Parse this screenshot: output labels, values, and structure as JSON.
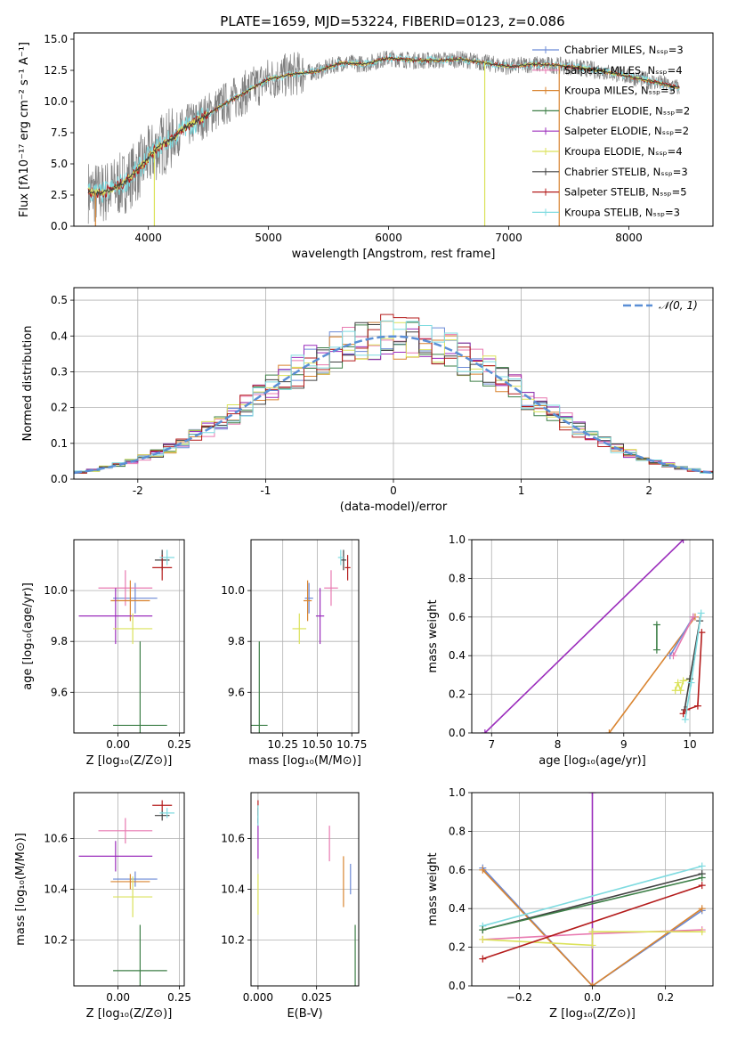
{
  "figure_title": "PLATE=1659, MJD=53224, FIBERID=0123, z=0.086",
  "colors": {
    "Chabrier MILES": "#6b8ad6",
    "Salpeter MILES": "#e879b0",
    "Kroupa MILES": "#d98430",
    "Chabrier ELODIE": "#3d7f47",
    "Salpeter ELODIE": "#9b2dbc",
    "Kroupa ELODIE": "#dbe25a",
    "Chabrier STELIB": "#404040",
    "Salpeter STELIB": "#b41c1c",
    "Kroupa STELIB": "#7fdbe0",
    "gaussian": "#5b8fd6",
    "data": "#7f7f7f"
  },
  "chart_data": [
    {
      "id": "spectrum",
      "type": "line",
      "xlabel": "wavelength [Angstrom, rest frame]",
      "ylabel": "Flux [fλ10⁻¹⁷ erg cm⁻² s⁻¹ A⁻¹]",
      "xlim": [
        3380,
        8700
      ],
      "ylim": [
        0,
        15.5
      ],
      "xticks": [
        4000,
        5000,
        6000,
        7000,
        8000
      ],
      "yticks": [
        0.0,
        2.5,
        5.0,
        7.5,
        10.0,
        12.5,
        15.0
      ],
      "x_range": [
        3500,
        8420
      ],
      "continuum": {
        "x": [
          3500,
          3600,
          3700,
          3800,
          3900,
          4000,
          4100,
          4200,
          4300,
          4400,
          4600,
          4800,
          5000,
          5200,
          5400,
          5600,
          5800,
          6000,
          6200,
          6400,
          6600,
          6800,
          7000,
          7200,
          7400,
          7600,
          7800,
          8000,
          8200,
          8420
        ],
        "y": [
          2.8,
          2.6,
          3.0,
          3.5,
          4.4,
          5.5,
          6.5,
          7.0,
          7.9,
          8.4,
          9.6,
          10.7,
          11.8,
          12.2,
          12.4,
          13.1,
          13.0,
          13.5,
          13.3,
          13.3,
          13.4,
          13.1,
          12.8,
          13.0,
          12.9,
          12.7,
          12.4,
          12.0,
          11.6,
          11.1
        ]
      },
      "legend_loc": "upper right",
      "legend": [
        {
          "name": "Chabrier MILES, Nₛₛₚ=3",
          "key": "Chabrier MILES"
        },
        {
          "name": "Salpeter MILES, Nₛₛₚ=4",
          "key": "Salpeter MILES"
        },
        {
          "name": "Kroupa MILES, Nₛₛₚ=3",
          "key": "Kroupa MILES"
        },
        {
          "name": "Chabrier ELODIE, Nₛₛₚ=2",
          "key": "Chabrier ELODIE"
        },
        {
          "name": "Salpeter ELODIE, Nₛₛₚ=2",
          "key": "Salpeter ELODIE"
        },
        {
          "name": "Kroupa ELODIE, Nₛₛₚ=4",
          "key": "Kroupa ELODIE"
        },
        {
          "name": "Chabrier STELIB, Nₛₛₚ=3",
          "key": "Chabrier STELIB"
        },
        {
          "name": "Salpeter STELIB, Nₛₛₚ=5",
          "key": "Salpeter STELIB"
        },
        {
          "name": "Kroupa STELIB, Nₛₛₚ=3",
          "key": "Kroupa STELIB"
        }
      ]
    },
    {
      "id": "residuals",
      "type": "histogram",
      "xlabel": "(data-model)/error",
      "ylabel": "Normed distribution",
      "xlim": [
        -2.5,
        2.5
      ],
      "ylim": [
        0,
        0.535
      ],
      "xticks": [
        -2,
        -1,
        0,
        1,
        2
      ],
      "yticks": [
        0.0,
        0.1,
        0.2,
        0.3,
        0.4,
        0.5
      ],
      "bin_width": 0.1,
      "grid": true,
      "gaussian_label": "𝒩(0, 1)",
      "legend_loc": "upper right"
    },
    {
      "id": "age_vs_Z",
      "type": "scatter",
      "xlabel": "Z [log₁₀(Z/Z⊙)]",
      "ylabel": "age  [log₁₀(age/yr)]",
      "xlim": [
        -0.18,
        0.27
      ],
      "ylim": [
        9.44,
        10.2
      ],
      "xticks": [
        0.0,
        0.25
      ],
      "xtick_labels": [
        "0.00",
        "0.25"
      ],
      "yticks": [
        9.6,
        9.8,
        10.0
      ],
      "grid": true,
      "points": [
        {
          "key": "Chabrier MILES",
          "x": 0.07,
          "y": 9.97,
          "dx": 0.09,
          "dy": 0.06
        },
        {
          "key": "Salpeter MILES",
          "x": 0.03,
          "y": 10.01,
          "dx": 0.11,
          "dy": 0.07
        },
        {
          "key": "Kroupa MILES",
          "x": 0.05,
          "y": 9.96,
          "dx": 0.08,
          "dy": 0.08
        },
        {
          "key": "Chabrier ELODIE",
          "x": 0.09,
          "y": 9.47,
          "dx": 0.11,
          "dy": 0.33
        },
        {
          "key": "Salpeter ELODIE",
          "x": -0.01,
          "y": 9.9,
          "dx": 0.15,
          "dy": 0.11
        },
        {
          "key": "Kroupa ELODIE",
          "x": 0.06,
          "y": 9.85,
          "dx": 0.08,
          "dy": 0.06
        },
        {
          "key": "Chabrier STELIB",
          "x": 0.18,
          "y": 10.12,
          "dx": 0.03,
          "dy": 0.04
        },
        {
          "key": "Salpeter STELIB",
          "x": 0.18,
          "y": 10.09,
          "dx": 0.04,
          "dy": 0.05
        },
        {
          "key": "Kroupa STELIB",
          "x": 0.2,
          "y": 10.13,
          "dx": 0.03,
          "dy": 0.03
        }
      ]
    },
    {
      "id": "age_vs_mass",
      "type": "scatter",
      "xlabel": "mass [log₁₀(M/M⊙)]",
      "xlim": [
        10.02,
        10.8
      ],
      "ylim": [
        9.44,
        10.2
      ],
      "xticks": [
        10.25,
        10.5,
        10.75
      ],
      "xtick_labels": [
        "10.25",
        "10.50",
        "10.75"
      ],
      "yticks": [
        9.6,
        9.8,
        10.0
      ],
      "grid": true,
      "points": [
        {
          "key": "Chabrier MILES",
          "x": 10.44,
          "y": 9.97,
          "dx": 0.03,
          "dy": 0.06
        },
        {
          "key": "Salpeter MILES",
          "x": 10.6,
          "y": 10.01,
          "dx": 0.05,
          "dy": 0.07
        },
        {
          "key": "Kroupa MILES",
          "x": 10.43,
          "y": 9.96,
          "dx": 0.03,
          "dy": 0.08
        },
        {
          "key": "Chabrier ELODIE",
          "x": 10.08,
          "y": 9.47,
          "dx": 0.06,
          "dy": 0.33
        },
        {
          "key": "Salpeter ELODIE",
          "x": 10.52,
          "y": 9.9,
          "dx": 0.03,
          "dy": 0.11
        },
        {
          "key": "Kroupa ELODIE",
          "x": 10.37,
          "y": 9.85,
          "dx": 0.05,
          "dy": 0.06
        },
        {
          "key": "Chabrier STELIB",
          "x": 10.69,
          "y": 10.12,
          "dx": 0.02,
          "dy": 0.04
        },
        {
          "key": "Salpeter STELIB",
          "x": 10.72,
          "y": 10.09,
          "dx": 0.02,
          "dy": 0.05
        },
        {
          "key": "Kroupa STELIB",
          "x": 10.67,
          "y": 10.13,
          "dx": 0.02,
          "dy": 0.03
        }
      ]
    },
    {
      "id": "weight_vs_age",
      "type": "line",
      "xlabel": "age  [log₁₀(age/yr)]",
      "ylabel": "mass weight",
      "xlim": [
        6.7,
        10.35
      ],
      "ylim": [
        0,
        1
      ],
      "xticks": [
        7,
        8,
        9,
        10
      ],
      "yticks": [
        0.0,
        0.2,
        0.4,
        0.6,
        0.8,
        1.0
      ],
      "grid": true,
      "series": [
        {
          "key": "Salpeter ELODIE",
          "x": [
            6.9,
            9.9
          ],
          "y": [
            0.0,
            1.0
          ]
        },
        {
          "key": "Kroupa MILES",
          "x": [
            8.78,
            10.08
          ],
          "y": [
            0.0,
            0.6
          ]
        },
        {
          "key": "Chabrier MILES",
          "x": [
            9.7,
            10.05
          ],
          "y": [
            0.4,
            0.6
          ]
        },
        {
          "key": "Salpeter MILES",
          "x": [
            9.75,
            10.05
          ],
          "y": [
            0.4,
            0.6
          ]
        },
        {
          "key": "Chabrier ELODIE",
          "x": [
            9.5,
            9.5
          ],
          "y": [
            0.43,
            0.56
          ]
        },
        {
          "key": "Kroupa ELODIE",
          "x": [
            9.78,
            9.82,
            9.86,
            9.9,
            10.0
          ],
          "y": [
            0.22,
            0.26,
            0.22,
            0.27,
            0.28
          ]
        },
        {
          "key": "Chabrier STELIB",
          "x": [
            9.92,
            10.0,
            10.15
          ],
          "y": [
            0.12,
            0.28,
            0.58
          ]
        },
        {
          "key": "Salpeter STELIB",
          "x": [
            9.9,
            9.95,
            10.12,
            10.18
          ],
          "y": [
            0.1,
            0.12,
            0.14,
            0.52
          ]
        },
        {
          "key": "Kroupa STELIB",
          "x": [
            9.93,
            10.02,
            10.17
          ],
          "y": [
            0.07,
            0.26,
            0.62
          ]
        }
      ]
    },
    {
      "id": "mass_vs_Z",
      "type": "scatter",
      "xlabel": "Z [log₁₀(Z/Z⊙)]",
      "ylabel": "mass [log₁₀(M/M⊙)]",
      "xlim": [
        -0.18,
        0.27
      ],
      "ylim": [
        10.02,
        10.78
      ],
      "xticks": [
        0.0,
        0.25
      ],
      "xtick_labels": [
        "0.00",
        "0.25"
      ],
      "yticks": [
        10.2,
        10.4,
        10.6
      ],
      "grid": true,
      "points": [
        {
          "key": "Chabrier MILES",
          "x": 0.07,
          "y": 10.44,
          "dx": 0.09,
          "dy": 0.03
        },
        {
          "key": "Salpeter MILES",
          "x": 0.03,
          "y": 10.63,
          "dx": 0.11,
          "dy": 0.05
        },
        {
          "key": "Kroupa MILES",
          "x": 0.05,
          "y": 10.43,
          "dx": 0.08,
          "dy": 0.03
        },
        {
          "key": "Chabrier ELODIE",
          "x": 0.09,
          "y": 10.08,
          "dx": 0.11,
          "dy": 0.18
        },
        {
          "key": "Salpeter ELODIE",
          "x": -0.01,
          "y": 10.53,
          "dx": 0.15,
          "dy": 0.06
        },
        {
          "key": "Kroupa ELODIE",
          "x": 0.06,
          "y": 10.37,
          "dx": 0.08,
          "dy": 0.08
        },
        {
          "key": "Chabrier STELIB",
          "x": 0.18,
          "y": 10.69,
          "dx": 0.03,
          "dy": 0.02
        },
        {
          "key": "Salpeter STELIB",
          "x": 0.18,
          "y": 10.73,
          "dx": 0.04,
          "dy": 0.02
        },
        {
          "key": "Kroupa STELIB",
          "x": 0.2,
          "y": 10.7,
          "dx": 0.03,
          "dy": 0.02
        }
      ]
    },
    {
      "id": "mass_vs_ebv",
      "type": "scatter",
      "xlabel": "E(B-V)",
      "xlim": [
        -0.003,
        0.043
      ],
      "ylim": [
        10.02,
        10.78
      ],
      "xticks": [
        0.0,
        0.025
      ],
      "xtick_labels": [
        "0.000",
        "0.025"
      ],
      "yticks": [
        10.2,
        10.4,
        10.6
      ],
      "grid": true,
      "points": [
        {
          "key": "Chabrier MILES",
          "x": 0.0395,
          "y": 10.44,
          "dx": 0,
          "dy": 0.06
        },
        {
          "key": "Salpeter MILES",
          "x": 0.0305,
          "y": 10.58,
          "dx": 0,
          "dy": 0.07
        },
        {
          "key": "Kroupa MILES",
          "x": 0.0365,
          "y": 10.43,
          "dx": 0,
          "dy": 0.1
        },
        {
          "key": "Chabrier ELODIE",
          "x": 0.0415,
          "y": 10.1,
          "dx": 0,
          "dy": 0.16
        },
        {
          "key": "Salpeter ELODIE",
          "x": 0.0,
          "y": 10.6,
          "dx": 0,
          "dy": 0.08
        },
        {
          "key": "Kroupa ELODIE",
          "x": 0.0,
          "y": 10.38,
          "dx": 0,
          "dy": 0.08
        },
        {
          "key": "Chabrier STELIB",
          "x": 0.0,
          "y": 10.69,
          "dx": 0,
          "dy": 0.03
        },
        {
          "key": "Salpeter STELIB",
          "x": 0.0,
          "y": 10.72,
          "dx": 0,
          "dy": 0.03
        },
        {
          "key": "Kroupa STELIB",
          "x": 0.0,
          "y": 10.69,
          "dx": 0,
          "dy": 0.04
        }
      ]
    },
    {
      "id": "weight_vs_Z",
      "type": "line",
      "xlabel": "Z [log₁₀(Z/Z⊙)]",
      "ylabel": "mass weight",
      "xlim": [
        -0.33,
        0.33
      ],
      "ylim": [
        0,
        1
      ],
      "xticks": [
        -0.2,
        0.0,
        0.2
      ],
      "xtick_labels": [
        "−0.2",
        "0.0",
        "0.2"
      ],
      "yticks": [
        0.0,
        0.2,
        0.4,
        0.6,
        0.8,
        1.0
      ],
      "grid": true,
      "series": [
        {
          "key": "Salpeter ELODIE",
          "x": [
            0.0,
            0.0
          ],
          "y": [
            0.0,
            1.0
          ]
        },
        {
          "key": "Chabrier MILES",
          "x": [
            -0.3,
            0.0,
            0.3
          ],
          "y": [
            0.61,
            0.0,
            0.39
          ]
        },
        {
          "key": "Kroupa MILES",
          "x": [
            -0.3,
            0.0,
            0.3
          ],
          "y": [
            0.6,
            0.0,
            0.4
          ]
        },
        {
          "key": "Salpeter MILES",
          "x": [
            -0.3,
            0.0,
            0.3
          ],
          "y": [
            0.24,
            0.27,
            0.29
          ]
        },
        {
          "key": "Kroupa ELODIE",
          "x": [
            -0.3,
            0.0,
            0.0,
            0.3
          ],
          "y": [
            0.24,
            0.21,
            0.28,
            0.28
          ]
        },
        {
          "key": "Kroupa STELIB",
          "x": [
            -0.3,
            0.3
          ],
          "y": [
            0.31,
            0.62
          ]
        },
        {
          "key": "Chabrier STELIB",
          "x": [
            -0.3,
            0.3
          ],
          "y": [
            0.29,
            0.58
          ]
        },
        {
          "key": "Chabrier ELODIE",
          "x": [
            -0.3,
            0.3
          ],
          "y": [
            0.29,
            0.56
          ]
        },
        {
          "key": "Salpeter STELIB",
          "x": [
            -0.3,
            0.3
          ],
          "y": [
            0.14,
            0.52
          ]
        }
      ]
    }
  ]
}
